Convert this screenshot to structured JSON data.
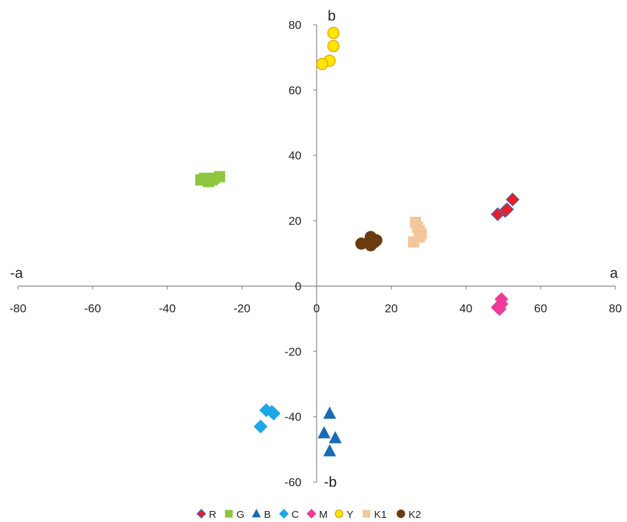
{
  "chart_data": {
    "type": "scatter",
    "title": "",
    "xlim": [
      -80,
      80
    ],
    "ylim": [
      -60,
      80
    ],
    "x_ticks": [
      "-80",
      "-60",
      "-40",
      "-20",
      "0",
      "20",
      "40",
      "60",
      "80"
    ],
    "y_ticks": [
      "80",
      "60",
      "40",
      "20",
      "0",
      "-20",
      "-40",
      "-60"
    ],
    "axis_labels": {
      "x_positive": "a",
      "x_negative": "-a",
      "y_positive": "b",
      "y_negative": "-b"
    },
    "grid": false,
    "legend_position": "bottom",
    "series": [
      {
        "name": "R",
        "marker": "diamond",
        "color": "#ee1c25",
        "stroke": "#5b5ea6",
        "points": [
          [
            48.5,
            22
          ],
          [
            50.5,
            23
          ],
          [
            52.5,
            26.5
          ],
          [
            51,
            23.5
          ]
        ]
      },
      {
        "name": "G",
        "marker": "square",
        "color": "#8dc63f",
        "stroke": "#8dc63f",
        "points": [
          [
            -31,
            32.5
          ],
          [
            -29,
            32
          ],
          [
            -27.5,
            33
          ],
          [
            -26,
            33.5
          ],
          [
            -30,
            33
          ],
          [
            -28,
            32.5
          ]
        ]
      },
      {
        "name": "B",
        "marker": "triangle",
        "color": "#1a6bb5",
        "stroke": "#1a6bb5",
        "points": [
          [
            3.5,
            -39
          ],
          [
            2,
            -45
          ],
          [
            5,
            -46.5
          ],
          [
            3.5,
            -50.5
          ]
        ]
      },
      {
        "name": "C",
        "marker": "diamond",
        "color": "#1ea7e8",
        "stroke": "#1ea7e8",
        "points": [
          [
            -13.5,
            -38
          ],
          [
            -11.5,
            -39
          ],
          [
            -15,
            -43
          ],
          [
            -12,
            -38.5
          ]
        ]
      },
      {
        "name": "M",
        "marker": "diamond",
        "color": "#ee3b97",
        "stroke": "#ee3b97",
        "points": [
          [
            49.5,
            -4
          ],
          [
            48.5,
            -6.5
          ],
          [
            49.5,
            -5.5
          ],
          [
            49,
            -7
          ]
        ]
      },
      {
        "name": "Y",
        "marker": "circle",
        "color": "#ffe600",
        "stroke": "#e8a800",
        "points": [
          [
            4.5,
            77.5
          ],
          [
            4.5,
            73.5
          ],
          [
            3.5,
            69
          ],
          [
            1.5,
            68
          ]
        ]
      },
      {
        "name": "K1",
        "marker": "square",
        "color": "#f4c69c",
        "stroke": "#f4c69c",
        "points": [
          [
            26.5,
            19.5
          ],
          [
            27.5,
            17
          ],
          [
            27.5,
            15
          ],
          [
            26,
            13.5
          ],
          [
            27,
            18
          ],
          [
            28,
            16
          ]
        ]
      },
      {
        "name": "K2",
        "marker": "circle",
        "color": "#6b3a0e",
        "stroke": "#6b3a0e",
        "points": [
          [
            14.5,
            15
          ],
          [
            15.5,
            13.5
          ],
          [
            12,
            13
          ],
          [
            14.5,
            12.5
          ],
          [
            16,
            14
          ]
        ]
      }
    ]
  }
}
